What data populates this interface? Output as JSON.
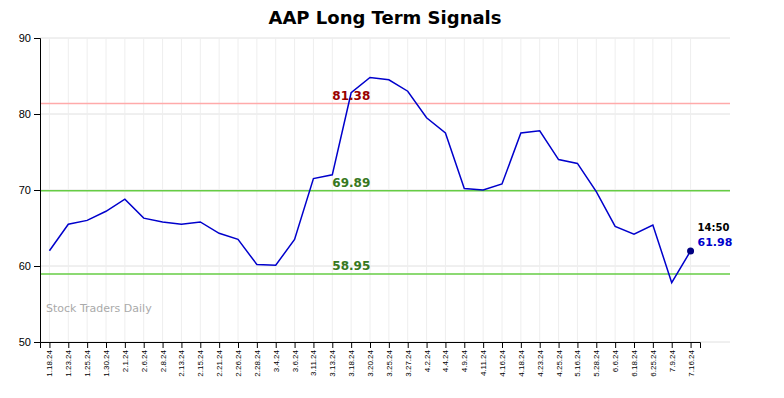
{
  "chart_data": {
    "type": "line",
    "title": "AAP Long Term Signals",
    "categories": [
      "1.18.24",
      "1.23.24",
      "1.25.24",
      "1.30.24",
      "2.1.24",
      "2.6.24",
      "2.8.24",
      "2.13.24",
      "2.15.24",
      "2.21.24",
      "2.26.24",
      "2.28.24",
      "3.4.24",
      "3.6.24",
      "3.11.24",
      "3.13.24",
      "3.18.24",
      "3.20.24",
      "3.25.24",
      "3.27.24",
      "4.2.24",
      "4.4.24",
      "4.9.24",
      "4.11.24",
      "4.16.24",
      "4.18.24",
      "4.23.24",
      "4.25.24",
      "5.16.24",
      "5.28.24",
      "6.6.24",
      "6.18.24",
      "6.25.24",
      "7.9.24",
      "7.16.24"
    ],
    "series": [
      {
        "color": "#0000cc",
        "values": [
          62.0,
          65.5,
          66.0,
          67.2,
          68.8,
          66.3,
          65.8,
          65.5,
          65.8,
          64.3,
          63.5,
          60.2,
          60.1,
          63.5,
          71.5,
          72.0,
          82.8,
          84.8,
          84.5,
          83.0,
          79.5,
          77.5,
          70.2,
          70.0,
          70.8,
          77.5,
          77.8,
          74.0,
          73.5,
          69.8,
          65.2,
          64.2,
          65.4,
          57.8,
          61.98
        ]
      }
    ],
    "ylim": [
      50,
      90
    ],
    "yticks": [
      50,
      60,
      70,
      80,
      90
    ],
    "grid": true,
    "reference_lines": [
      {
        "y": 81.38,
        "label": "81.38",
        "color": "#ffaaaa"
      },
      {
        "y": 69.89,
        "label": "69.89",
        "color": "#66cc44"
      },
      {
        "y": 58.95,
        "label": "58.95",
        "color": "#66cc44"
      }
    ],
    "last_point": {
      "time_label": "14:50",
      "label": "61.98",
      "color": "#000080"
    },
    "watermark": "Stock Traders Daily"
  }
}
